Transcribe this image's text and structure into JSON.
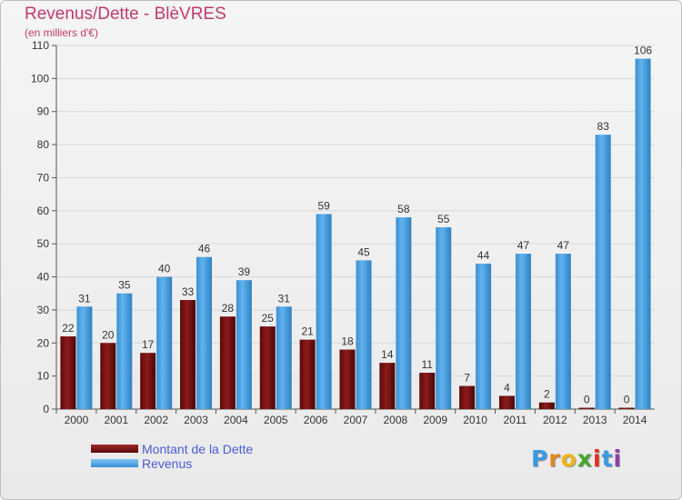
{
  "header": {
    "title": "Revenus/Dette - BlèVRES",
    "subtitle": "(en milliers d'€)"
  },
  "legend": {
    "items": [
      {
        "label": "Montant de la Dette",
        "color": "#7a1010"
      },
      {
        "label": "Revenus",
        "color": "#4aa3e2"
      }
    ]
  },
  "brand": {
    "letters": [
      "P",
      "r",
      "o",
      "x",
      "i",
      "t",
      "i"
    ],
    "colors": [
      "#3a9be0",
      "#e2861f",
      "#f0b51c",
      "#45a62a",
      "#e0301e",
      "#3a9be0",
      "#8e3fa8"
    ]
  },
  "chart_data": {
    "type": "bar",
    "categories": [
      "2000",
      "2001",
      "2002",
      "2003",
      "2004",
      "2005",
      "2006",
      "2007",
      "2008",
      "2009",
      "2010",
      "2011",
      "2012",
      "2013",
      "2014"
    ],
    "series": [
      {
        "name": "Montant de la Dette",
        "color": "#7a1010",
        "values": [
          22,
          20,
          17,
          33,
          28,
          25,
          21,
          18,
          14,
          11,
          7,
          4,
          2,
          0,
          0
        ]
      },
      {
        "name": "Revenus",
        "color": "#4aa3e2",
        "values": [
          31,
          35,
          40,
          46,
          39,
          31,
          59,
          45,
          58,
          55,
          44,
          47,
          47,
          83,
          106
        ]
      }
    ],
    "title": "Revenus/Dette - BlèVRES",
    "ylabel": "(en milliers d'€)",
    "ylim": [
      0,
      110
    ],
    "yticks": [
      0,
      10,
      20,
      30,
      40,
      50,
      60,
      70,
      80,
      90,
      100,
      110
    ],
    "grid": true,
    "legend_position": "bottom-left"
  }
}
